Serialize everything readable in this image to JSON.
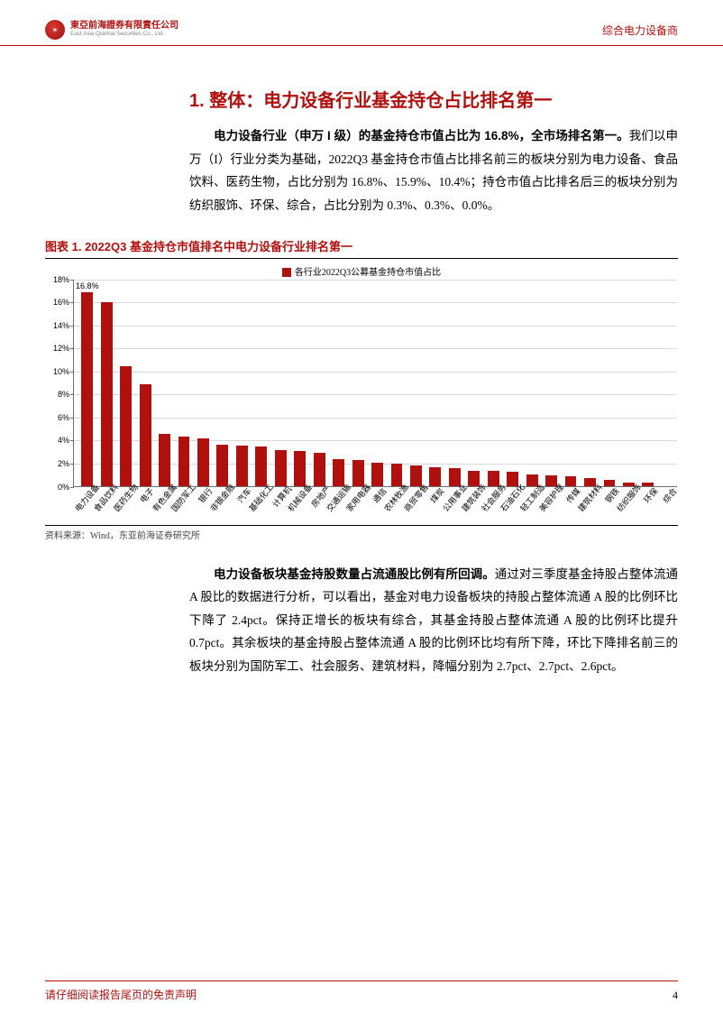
{
  "header": {
    "company_cn": "東亞前海證券有限責任公司",
    "company_en": "East Asia Qianhai Securities Co., Ltd.",
    "doc_category": "综合电力设备商"
  },
  "section": {
    "title": "1. 整体：电力设备行业基金持仓占比排名第一",
    "para1_lead": "电力设备行业（申万 I 级）的基金持仓市值占比为 16.8%，全市场排名第一。",
    "para1_rest": "我们以申万（I）行业分类为基础，2022Q3 基金持仓市值占比排名前三的板块分别为电力设备、食品饮料、医药生物，占比分别为 16.8%、15.9%、10.4%；持仓市值占比排名后三的板块分别为纺织服饰、环保、综合，占比分别为 0.3%、0.3%、0.0%。",
    "para2_lead": "电力设备板块基金持股数量占流通股比例有所回调。",
    "para2_rest": "通过对三季度基金持股占整体流通 A 股比的数据进行分析，可以看出，基金对电力设备板块的持股占整体流通 A 股的比例环比下降了 2.4pct。保持正增长的板块有综合，其基金持股占整体流通 A 股的比例环比提升 0.7pct。其余板块的基金持股占整体流通 A 股的比例环比均有所下降，环比下降排名前三的板块分别为国防军工、社会服务、建筑材料，降幅分别为 2.7pct、2.7pct、2.6pct。"
  },
  "figure": {
    "title": "图表 1.  2022Q3 基金持仓市值排名中电力设备行业排名第一",
    "legend": "各行业2022Q3公募基金持仓市值占比",
    "source": "资料来源：Wind，东亚前海证券研究所",
    "chart": {
      "type": "bar",
      "bar_color": "#b0100e",
      "grid_color": "#d9d9d9",
      "axis_color": "#6e6e6e",
      "background_color": "#ffffff",
      "ylim": [
        0,
        18
      ],
      "ytick_step": 2,
      "ytick_suffix": "%",
      "callout_label": "16.8%",
      "callout_index": 0,
      "categories": [
        "电力设备",
        "食品饮料",
        "医药生物",
        "电子",
        "有色金属",
        "国防军工",
        "银行",
        "非银金融",
        "汽车",
        "基础化工",
        "计算机",
        "机械设备",
        "房地产",
        "交通运输",
        "家用电器",
        "通信",
        "农林牧渔",
        "商贸零售",
        "煤炭",
        "公用事业",
        "建筑装饰",
        "社会服务",
        "石油石化",
        "轻工制造",
        "美容护理",
        "传媒",
        "建筑材料",
        "钢铁",
        "纺织服饰",
        "环保",
        "综合"
      ],
      "values": [
        16.8,
        15.9,
        10.4,
        8.8,
        4.5,
        4.3,
        4.1,
        3.6,
        3.5,
        3.4,
        3.1,
        3.0,
        2.9,
        2.3,
        2.2,
        2.0,
        1.9,
        1.8,
        1.6,
        1.5,
        1.3,
        1.3,
        1.2,
        1.0,
        0.9,
        0.8,
        0.7,
        0.5,
        0.3,
        0.3,
        0.0
      ]
    }
  },
  "footer": {
    "disclaimer": "请仔细阅读报告尾页的免责声明",
    "page_number": "4"
  }
}
